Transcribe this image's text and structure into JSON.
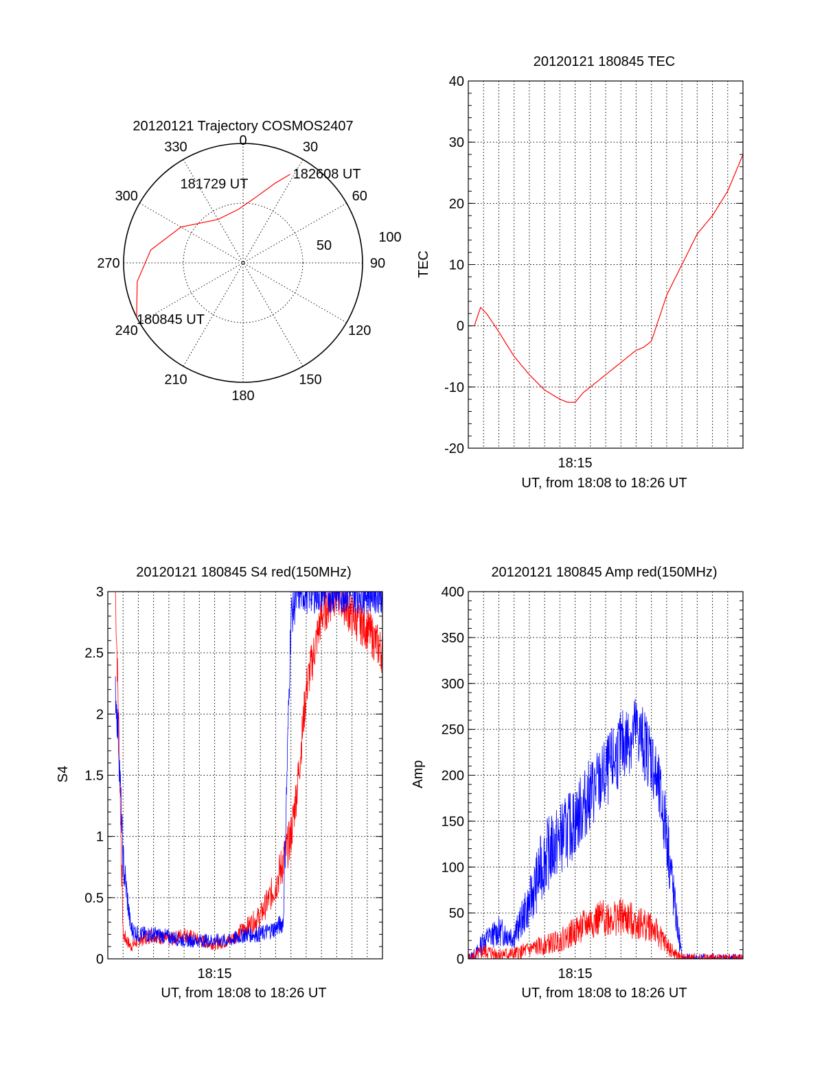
{
  "colors": {
    "red": "#ff0000",
    "blue": "#0000ff",
    "axis": "#000000",
    "grid": "#000000"
  },
  "chart_data": [
    {
      "id": "polar",
      "type": "polar-trajectory",
      "title": "20120121 Trajectory COSMOS2407",
      "azimuth_labels": [
        "0",
        "30",
        "60",
        "90",
        "120",
        "150",
        "180",
        "210",
        "240",
        "270",
        "300",
        "330"
      ],
      "ring_labels": [
        "50",
        "100"
      ],
      "points": [
        {
          "label": "180845 UT",
          "az": 243,
          "zen": 100
        },
        {
          "label": "181729 UT",
          "az": 330,
          "zen": 42
        },
        {
          "label": "182608 UT",
          "az": 28,
          "zen": 84
        }
      ],
      "trajectory": [
        [
          243,
          100
        ],
        [
          260,
          90
        ],
        [
          278,
          78
        ],
        [
          300,
          60
        ],
        [
          330,
          42
        ],
        [
          355,
          45
        ],
        [
          10,
          55
        ],
        [
          22,
          72
        ],
        [
          28,
          84
        ]
      ],
      "series_color": "#ff0000"
    },
    {
      "id": "tec",
      "type": "line",
      "title": "20120121 180845 TEC",
      "xlabel": "UT, from 18:08 to 18:26 UT",
      "ylabel": "TEC",
      "xtick_labels": [
        "18:15"
      ],
      "ylim": [
        -20,
        40
      ],
      "yticks": [
        "-20",
        "-10",
        "0",
        "10",
        "20",
        "30",
        "40"
      ],
      "series": [
        {
          "color": "#ff0000",
          "x": [
            0.4,
            0.8,
            1.2,
            2,
            3,
            4,
            5,
            6,
            6.5,
            7,
            7.5,
            8,
            9,
            10,
            11,
            11.5,
            12,
            13,
            14,
            15,
            16,
            17,
            18
          ],
          "y": [
            0,
            3,
            2,
            -1,
            -5,
            -8,
            -10.5,
            -12,
            -12.5,
            -12.5,
            -11,
            -10,
            -8,
            -6,
            -4,
            -3.5,
            -2.5,
            5,
            10,
            15,
            18,
            22,
            28
          ]
        }
      ]
    },
    {
      "id": "s4",
      "type": "line",
      "title": "20120121 180845 S4 red(150MHz)",
      "xlabel": "UT, from 18:08 to 18:26 UT",
      "ylabel": "S4",
      "xtick_labels": [
        "18:15"
      ],
      "ylim": [
        0,
        3
      ],
      "yticks": [
        "0",
        "0.5",
        "1",
        "1.5",
        "2",
        "2.5",
        "3"
      ],
      "series": [
        {
          "color": "#ff0000",
          "x": [
            0.5,
            0.7,
            1,
            1.5,
            2,
            3,
            4,
            5,
            6,
            7,
            8,
            9,
            10,
            11,
            11.5,
            12,
            12.5,
            13,
            14,
            15,
            16,
            17,
            18
          ],
          "y": [
            3,
            2,
            0.2,
            0.1,
            0.15,
            0.2,
            0.15,
            0.2,
            0.15,
            0.12,
            0.15,
            0.25,
            0.35,
            0.6,
            0.8,
            1,
            1.5,
            2.2,
            2.8,
            3,
            2.8,
            2.7,
            2.5
          ]
        },
        {
          "color": "#0000ff",
          "x": [
            0.5,
            0.7,
            1,
            1.5,
            2,
            3,
            4,
            5,
            6,
            7,
            8,
            9,
            10,
            11,
            11.5,
            12,
            12.5,
            13,
            14,
            15,
            16,
            17,
            18
          ],
          "y": [
            2.2,
            1.8,
            0.8,
            0.25,
            0.2,
            0.2,
            0.18,
            0.15,
            0.15,
            0.15,
            0.15,
            0.2,
            0.2,
            0.25,
            0.3,
            2.8,
            3,
            3,
            3,
            3,
            3,
            3,
            3
          ]
        }
      ]
    },
    {
      "id": "amp",
      "type": "line",
      "title": "20120121 180845 Amp red(150MHz)",
      "xlabel": "UT, from 18:08 to 18:26 UT",
      "ylabel": "Amp",
      "xtick_labels": [
        "18:15"
      ],
      "ylim": [
        0,
        400
      ],
      "yticks": [
        "0",
        "50",
        "100",
        "150",
        "200",
        "250",
        "300",
        "350",
        "400"
      ],
      "series": [
        {
          "color": "#0000ff",
          "x": [
            0,
            0.5,
            1,
            2,
            3,
            4,
            5,
            6,
            7,
            8,
            9,
            10,
            11,
            12,
            12.5,
            13,
            13.5,
            14,
            15,
            16,
            17,
            18
          ],
          "y": [
            0,
            5,
            20,
            30,
            25,
            60,
            110,
            130,
            150,
            180,
            200,
            230,
            250,
            220,
            180,
            140,
            60,
            0,
            0,
            0,
            0,
            0
          ]
        },
        {
          "color": "#ff0000",
          "x": [
            0,
            0.5,
            1,
            2,
            3,
            4,
            5,
            6,
            7,
            8,
            9,
            10,
            11,
            12,
            12.5,
            13,
            13.5,
            14,
            15,
            16,
            17,
            18
          ],
          "y": [
            0,
            3,
            8,
            5,
            5,
            10,
            15,
            20,
            30,
            40,
            45,
            45,
            40,
            35,
            25,
            15,
            5,
            0,
            0,
            0,
            0,
            0
          ]
        }
      ]
    }
  ]
}
